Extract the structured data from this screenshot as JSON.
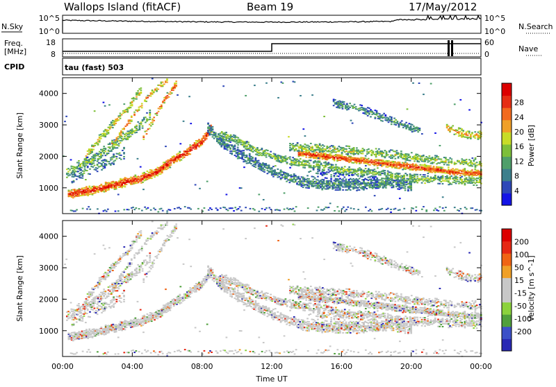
{
  "header": {
    "title": "Wallops Island (fitACF)",
    "beam": "Beam 19",
    "date": "17/May/2012"
  },
  "params": {
    "nsky_label": "N.Sky",
    "nsearch_label": "N.Search",
    "nsky_ticks": [
      "10^5",
      "10^0"
    ],
    "nsearch_ticks": [
      "10^5",
      "10^0"
    ],
    "freq_label": "Freq.",
    "freq_unit": "[MHz]",
    "freq_ticks": [
      "18",
      "8"
    ],
    "nave_label": "Nave",
    "nave_ticks": [
      "60",
      "0"
    ],
    "cpid_label": "CPID",
    "cpid_value": "tau (fast) 503",
    "freq_step": {
      "change_hour": 12,
      "before": "low",
      "after": "high"
    }
  },
  "chart_data": [
    {
      "type": "heatmap",
      "name": "power-panel",
      "ylabel": "Slant Range [km]",
      "xlabel": "",
      "x_ticks": [
        "00:00",
        "04:00",
        "08:00",
        "12:00",
        "16:00",
        "20:00",
        "00:00"
      ],
      "x_range_hours": [
        0,
        24
      ],
      "y_ticks": [
        1000,
        2000,
        3000,
        4000
      ],
      "ylim": [
        180,
        4500
      ],
      "colorbar": {
        "label": "Power [dB]",
        "ticks": [
          "4",
          "8",
          "12",
          "16",
          "20",
          "24",
          "28"
        ],
        "colors": [
          "#1414e6",
          "#2e48b8",
          "#3c7f8c",
          "#4f9f6a",
          "#7dbf3a",
          "#c8dc28",
          "#f0a028",
          "#f26a1e",
          "#e62e14",
          "#dc0000"
        ]
      },
      "bands": [
        {
          "points": [
            [
              0.3,
              800
            ],
            [
              1.5,
              900
            ],
            [
              3,
              1100
            ],
            [
              4.5,
              1300
            ],
            [
              5.5,
              1550
            ],
            [
              6.2,
              1850
            ],
            [
              7,
              2100
            ],
            [
              8,
              2500
            ],
            [
              8.5,
              2900
            ]
          ],
          "width": 170,
          "density": 0.9,
          "level": 0.95
        },
        {
          "points": [
            [
              0.2,
              1500
            ],
            [
              1,
              1700
            ],
            [
              2,
              2000
            ],
            [
              3,
              2400
            ],
            [
              4,
              2800
            ],
            [
              5,
              3300
            ]
          ],
          "width": 200,
          "density": 0.55,
          "level": 0.45
        },
        {
          "points": [
            [
              1.3,
              2000
            ],
            [
              2,
              2500
            ],
            [
              3,
              3100
            ],
            [
              3.8,
              3600
            ],
            [
              4.5,
              4100
            ]
          ],
          "width": 150,
          "density": 0.55,
          "level": 0.62
        },
        {
          "points": [
            [
              2.8,
              2400
            ],
            [
              3.5,
              2900
            ],
            [
              4.3,
              3500
            ],
            [
              5.2,
              4100
            ],
            [
              6,
              4400
            ]
          ],
          "width": 120,
          "density": 0.5,
          "level": 0.72
        },
        {
          "points": [
            [
              4.6,
              2600
            ],
            [
              5.2,
              3200
            ],
            [
              5.8,
              3800
            ],
            [
              6.5,
              4300
            ]
          ],
          "width": 120,
          "density": 0.5,
          "level": 0.82
        },
        {
          "points": [
            [
              0.5,
              1300
            ],
            [
              1.5,
              1600
            ],
            [
              2.5,
              1800
            ],
            [
              3.5,
              2100
            ]
          ],
          "width": 200,
          "density": 0.35,
          "level": 0.3
        },
        {
          "points": [
            [
              8.3,
              2900
            ],
            [
              9,
              2500
            ],
            [
              10,
              2100
            ],
            [
              11,
              1800
            ],
            [
              12,
              1500
            ],
            [
              13.5,
              1200
            ],
            [
              15,
              1100
            ],
            [
              17,
              1100
            ],
            [
              19,
              1150
            ],
            [
              20,
              1050
            ]
          ],
          "width": 200,
          "density": 0.7,
          "level": 0.3
        },
        {
          "points": [
            [
              9,
              2700
            ],
            [
              10,
              2500
            ],
            [
              11,
              2200
            ],
            [
              12.5,
              1900
            ],
            [
              14,
              1750
            ],
            [
              15,
              1700
            ],
            [
              16,
              1550
            ],
            [
              18,
              1450
            ],
            [
              20,
              1300
            ],
            [
              22,
              1250
            ],
            [
              24,
              1200
            ]
          ],
          "width": 160,
          "density": 0.6,
          "level": 0.45
        },
        {
          "points": [
            [
              13.5,
              2100
            ],
            [
              15,
              2000
            ],
            [
              16.5,
              1900
            ],
            [
              18,
              1800
            ],
            [
              19.5,
              1700
            ],
            [
              21,
              1600
            ],
            [
              22.5,
              1500
            ],
            [
              24,
              1450
            ]
          ],
          "width": 130,
          "density": 0.9,
          "level": 0.9
        },
        {
          "points": [
            [
              13,
              2300
            ],
            [
              15,
              2250
            ],
            [
              17,
              2150
            ],
            [
              19,
              2050
            ],
            [
              21,
              1900
            ],
            [
              23,
              1800
            ],
            [
              24,
              1750
            ]
          ],
          "width": 150,
          "density": 0.55,
          "level": 0.5
        },
        {
          "points": [
            [
              15.5,
              3700
            ],
            [
              17,
              3500
            ],
            [
              18.5,
              3200
            ],
            [
              19.5,
              3000
            ],
            [
              20.5,
              2800
            ]
          ],
          "width": 150,
          "density": 0.55,
          "level": 0.3
        },
        {
          "points": [
            [
              22,
              2900
            ],
            [
              23,
              2700
            ],
            [
              24,
              2650
            ]
          ],
          "width": 150,
          "density": 0.6,
          "level": 0.7
        },
        {
          "points": [
            [
              14,
              1500
            ],
            [
              16,
              1300
            ],
            [
              18,
              1200
            ]
          ],
          "width": 180,
          "density": 0.3,
          "level": 0.2
        }
      ]
    },
    {
      "type": "heatmap",
      "name": "velocity-panel",
      "ylabel": "Slant Range [km]",
      "xlabel": "Time UT",
      "x_ticks": [
        "00:00",
        "04:00",
        "08:00",
        "12:00",
        "16:00",
        "20:00",
        "00:00"
      ],
      "x_range_hours": [
        0,
        24
      ],
      "y_ticks": [
        1000,
        2000,
        3000,
        4000
      ],
      "ylim": [
        180,
        4500
      ],
      "colorbar": {
        "label": "Velocity [m s^-1]",
        "ticks": [
          "200",
          "100",
          "50",
          "15",
          "-15",
          "-50",
          "-100",
          "-200"
        ],
        "colors": [
          "#2828b4",
          "#3c50c8",
          "#50a03c",
          "#8cd23c",
          "#c8c8c8",
          "#c8c8c8",
          "#f0a028",
          "#f06414",
          "#e62814",
          "#dc0000"
        ]
      }
    }
  ]
}
